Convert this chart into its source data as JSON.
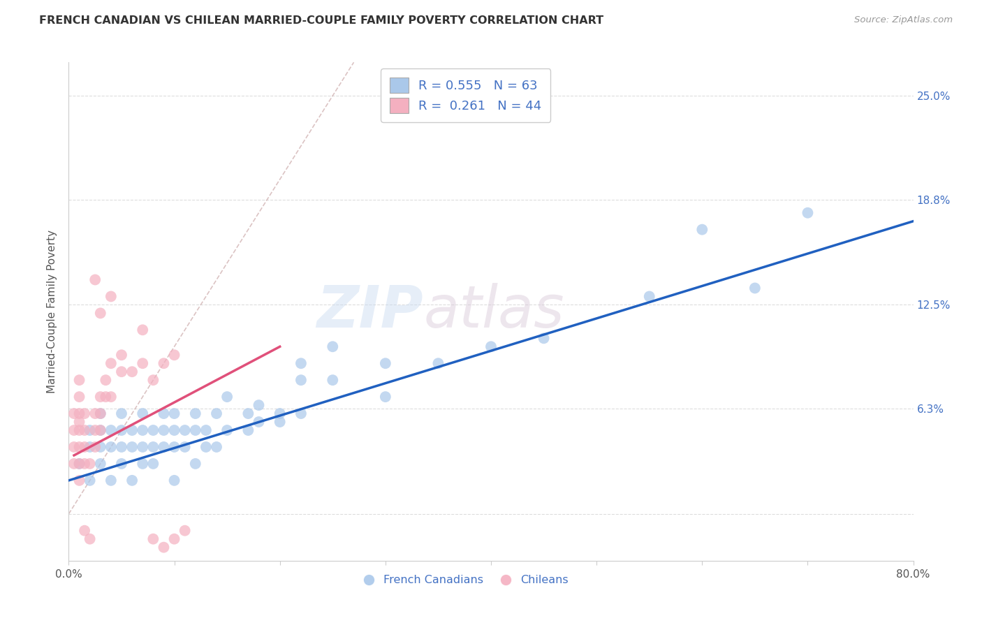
{
  "title": "FRENCH CANADIAN VS CHILEAN MARRIED-COUPLE FAMILY POVERTY CORRELATION CHART",
  "source": "Source: ZipAtlas.com",
  "ylabel": "Married-Couple Family Poverty",
  "xlim": [
    0.0,
    0.8
  ],
  "ylim": [
    -0.028,
    0.27
  ],
  "xticks": [
    0.0,
    0.1,
    0.2,
    0.3,
    0.4,
    0.5,
    0.6,
    0.7,
    0.8
  ],
  "xticklabels": [
    "0.0%",
    "",
    "",
    "",
    "",
    "",
    "",
    "",
    "80.0%"
  ],
  "ytick_positions": [
    0.0,
    0.063,
    0.125,
    0.188,
    0.25
  ],
  "ytick_labels": [
    "",
    "6.3%",
    "12.5%",
    "18.8%",
    "25.0%"
  ],
  "blue_R": 0.555,
  "blue_N": 63,
  "pink_R": 0.261,
  "pink_N": 44,
  "blue_color": "#aac8ea",
  "pink_color": "#f4b0c0",
  "blue_line_color": "#2060c0",
  "pink_line_color": "#e0507a",
  "blue_label": "French Canadians",
  "pink_label": "Chileans",
  "blue_scatter": [
    [
      0.01,
      0.03
    ],
    [
      0.02,
      0.02
    ],
    [
      0.02,
      0.04
    ],
    [
      0.02,
      0.05
    ],
    [
      0.03,
      0.03
    ],
    [
      0.03,
      0.04
    ],
    [
      0.03,
      0.05
    ],
    [
      0.03,
      0.06
    ],
    [
      0.04,
      0.02
    ],
    [
      0.04,
      0.04
    ],
    [
      0.04,
      0.05
    ],
    [
      0.05,
      0.03
    ],
    [
      0.05,
      0.04
    ],
    [
      0.05,
      0.05
    ],
    [
      0.05,
      0.06
    ],
    [
      0.06,
      0.02
    ],
    [
      0.06,
      0.04
    ],
    [
      0.06,
      0.05
    ],
    [
      0.07,
      0.03
    ],
    [
      0.07,
      0.04
    ],
    [
      0.07,
      0.05
    ],
    [
      0.07,
      0.06
    ],
    [
      0.08,
      0.03
    ],
    [
      0.08,
      0.04
    ],
    [
      0.08,
      0.05
    ],
    [
      0.09,
      0.04
    ],
    [
      0.09,
      0.05
    ],
    [
      0.09,
      0.06
    ],
    [
      0.1,
      0.02
    ],
    [
      0.1,
      0.04
    ],
    [
      0.1,
      0.05
    ],
    [
      0.1,
      0.06
    ],
    [
      0.11,
      0.04
    ],
    [
      0.11,
      0.05
    ],
    [
      0.12,
      0.03
    ],
    [
      0.12,
      0.05
    ],
    [
      0.12,
      0.06
    ],
    [
      0.13,
      0.04
    ],
    [
      0.13,
      0.05
    ],
    [
      0.14,
      0.04
    ],
    [
      0.14,
      0.06
    ],
    [
      0.15,
      0.05
    ],
    [
      0.15,
      0.07
    ],
    [
      0.17,
      0.05
    ],
    [
      0.17,
      0.06
    ],
    [
      0.18,
      0.055
    ],
    [
      0.18,
      0.065
    ],
    [
      0.2,
      0.06
    ],
    [
      0.2,
      0.055
    ],
    [
      0.22,
      0.06
    ],
    [
      0.22,
      0.08
    ],
    [
      0.22,
      0.09
    ],
    [
      0.25,
      0.08
    ],
    [
      0.25,
      0.1
    ],
    [
      0.3,
      0.07
    ],
    [
      0.3,
      0.09
    ],
    [
      0.35,
      0.09
    ],
    [
      0.4,
      0.1
    ],
    [
      0.45,
      0.105
    ],
    [
      0.55,
      0.13
    ],
    [
      0.6,
      0.17
    ],
    [
      0.65,
      0.135
    ],
    [
      0.7,
      0.18
    ]
  ],
  "pink_scatter": [
    [
      0.005,
      0.03
    ],
    [
      0.005,
      0.04
    ],
    [
      0.005,
      0.05
    ],
    [
      0.005,
      0.06
    ],
    [
      0.01,
      0.02
    ],
    [
      0.01,
      0.03
    ],
    [
      0.01,
      0.04
    ],
    [
      0.01,
      0.05
    ],
    [
      0.01,
      0.055
    ],
    [
      0.01,
      0.06
    ],
    [
      0.01,
      0.07
    ],
    [
      0.01,
      0.08
    ],
    [
      0.015,
      0.03
    ],
    [
      0.015,
      0.04
    ],
    [
      0.015,
      0.05
    ],
    [
      0.015,
      0.06
    ],
    [
      0.015,
      -0.01
    ],
    [
      0.02,
      -0.015
    ],
    [
      0.02,
      0.03
    ],
    [
      0.025,
      0.04
    ],
    [
      0.025,
      0.05
    ],
    [
      0.025,
      0.06
    ],
    [
      0.03,
      0.05
    ],
    [
      0.03,
      0.06
    ],
    [
      0.03,
      0.07
    ],
    [
      0.035,
      0.07
    ],
    [
      0.035,
      0.08
    ],
    [
      0.04,
      0.07
    ],
    [
      0.04,
      0.09
    ],
    [
      0.05,
      0.085
    ],
    [
      0.05,
      0.095
    ],
    [
      0.06,
      0.085
    ],
    [
      0.07,
      0.09
    ],
    [
      0.08,
      0.08
    ],
    [
      0.09,
      0.09
    ],
    [
      0.1,
      0.095
    ],
    [
      0.025,
      0.14
    ],
    [
      0.03,
      0.12
    ],
    [
      0.04,
      0.13
    ],
    [
      0.07,
      0.11
    ],
    [
      0.08,
      -0.015
    ],
    [
      0.09,
      -0.02
    ],
    [
      0.1,
      -0.015
    ],
    [
      0.11,
      -0.01
    ]
  ],
  "blue_line_x": [
    0.0,
    0.8
  ],
  "blue_line_y": [
    0.02,
    0.175
  ],
  "pink_line_x": [
    0.005,
    0.2
  ],
  "pink_line_y": [
    0.035,
    0.1
  ],
  "ref_line_x": [
    0.0,
    0.27
  ],
  "ref_line_y": [
    0.0,
    0.27
  ]
}
